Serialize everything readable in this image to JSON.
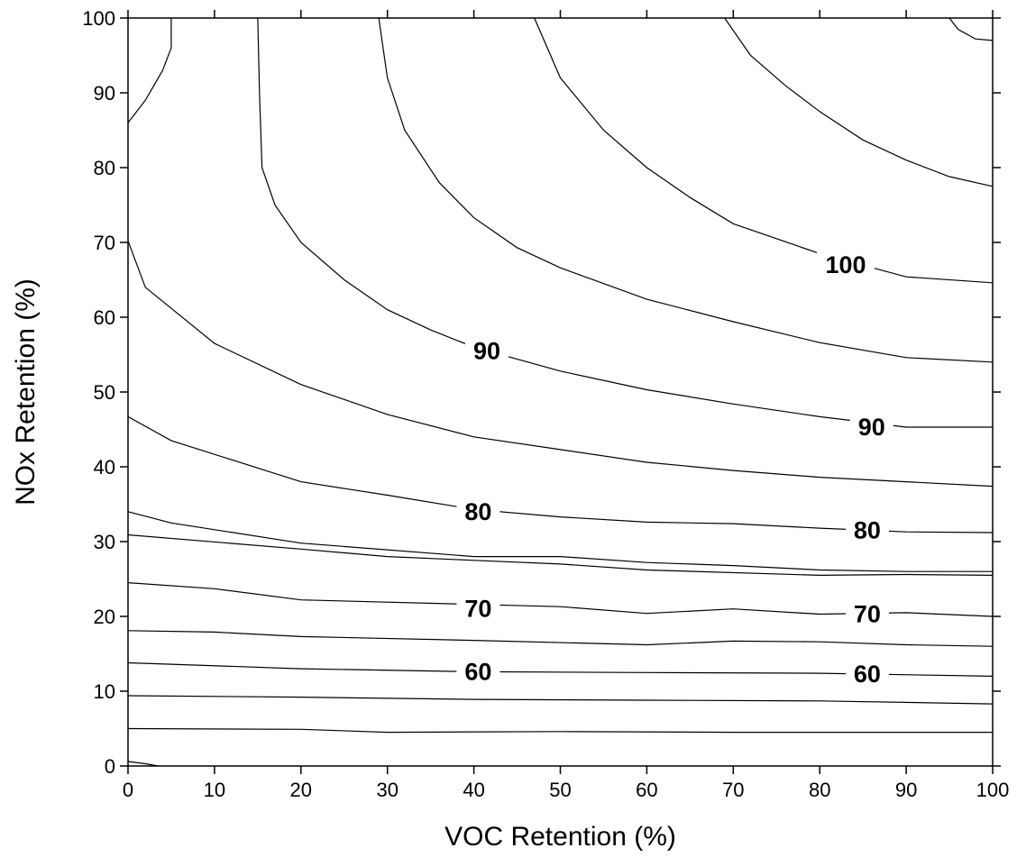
{
  "chart_data": {
    "type": "contour",
    "title": "",
    "xlabel": "VOC Retention (%)",
    "ylabel": "NOx Retention (%)",
    "xlim": [
      0,
      100
    ],
    "ylim": [
      0,
      100
    ],
    "xticks": [
      "0",
      "10",
      "20",
      "30",
      "40",
      "50",
      "60",
      "70",
      "80",
      "90",
      "100"
    ],
    "yticks": [
      "0",
      "10",
      "20",
      "30",
      "40",
      "50",
      "60",
      "70",
      "80",
      "90",
      "100"
    ],
    "grid": false,
    "legend": "none",
    "contours": [
      {
        "points": [
          [
            0,
            0.6
          ],
          [
            2,
            0.3
          ],
          [
            3.5,
            0
          ]
        ]
      },
      {
        "points": [
          [
            0,
            5
          ],
          [
            20,
            4.9
          ],
          [
            30,
            4.5
          ],
          [
            50,
            4.6
          ],
          [
            70,
            4.5
          ],
          [
            100,
            4.5
          ]
        ]
      },
      {
        "points": [
          [
            0,
            9.4
          ],
          [
            20,
            9.2
          ],
          [
            40,
            8.9
          ],
          [
            60,
            8.8
          ],
          [
            80,
            8.7
          ],
          [
            100,
            8.3
          ]
        ]
      },
      {
        "label": "60",
        "points": [
          [
            0,
            13.8
          ],
          [
            5,
            13.6
          ],
          [
            20,
            13
          ],
          [
            40,
            12.6
          ],
          [
            60,
            12.5
          ],
          [
            80,
            12.4
          ],
          [
            100,
            12
          ]
        ]
      },
      {
        "points": [
          [
            0,
            18.1
          ],
          [
            10,
            17.9
          ],
          [
            20,
            17.3
          ],
          [
            40,
            16.8
          ],
          [
            60,
            16.2
          ],
          [
            70,
            16.7
          ],
          [
            80,
            16.6
          ],
          [
            90,
            16.2
          ],
          [
            100,
            16
          ]
        ]
      },
      {
        "label": "70",
        "points": [
          [
            0,
            24.5
          ],
          [
            10,
            23.7
          ],
          [
            20,
            22.2
          ],
          [
            40,
            21.6
          ],
          [
            50,
            21.3
          ],
          [
            60,
            20.4
          ],
          [
            70,
            21
          ],
          [
            80,
            20.3
          ],
          [
            90,
            20.5
          ],
          [
            100,
            20
          ]
        ]
      },
      {
        "points": [
          [
            0,
            30.9
          ],
          [
            20,
            29
          ],
          [
            30,
            28
          ],
          [
            40,
            27.5
          ],
          [
            50,
            27
          ],
          [
            60,
            26.2
          ],
          [
            80,
            25.5
          ],
          [
            90,
            25.6
          ],
          [
            100,
            25.5
          ]
        ]
      },
      {
        "label": "80",
        "points": [
          [
            0,
            34
          ],
          [
            5,
            32.5
          ],
          [
            20,
            29.8
          ],
          [
            40,
            28
          ],
          [
            50,
            28
          ],
          [
            60,
            27.2
          ],
          [
            70,
            26.8
          ],
          [
            80,
            26.2
          ],
          [
            90,
            26
          ],
          [
            100,
            26
          ]
        ]
      },
      {
        "points": [
          [
            0,
            46.7
          ],
          [
            5,
            43.5
          ],
          [
            20,
            38
          ],
          [
            30,
            36.2
          ],
          [
            40,
            34.3
          ],
          [
            50,
            33.3
          ],
          [
            60,
            32.6
          ],
          [
            70,
            32.4
          ],
          [
            80,
            31.8
          ],
          [
            90,
            31.3
          ],
          [
            100,
            31.2
          ]
        ]
      },
      {
        "points": [
          [
            0,
            70.2
          ],
          [
            2,
            64
          ],
          [
            10,
            56.5
          ],
          [
            20,
            51
          ],
          [
            30,
            47
          ],
          [
            40,
            44
          ],
          [
            50,
            42.3
          ],
          [
            60,
            40.6
          ],
          [
            70,
            39.5
          ],
          [
            80,
            38.6
          ],
          [
            90,
            38
          ],
          [
            100,
            37.4
          ]
        ]
      },
      {
        "label": "90",
        "points": [
          [
            15,
            100
          ],
          [
            15.2,
            90
          ],
          [
            15.5,
            80
          ],
          [
            17,
            75
          ],
          [
            20,
            70
          ],
          [
            25,
            65
          ],
          [
            30,
            61
          ],
          [
            35,
            58.3
          ],
          [
            40,
            56
          ],
          [
            50,
            52.8
          ],
          [
            60,
            50.3
          ],
          [
            70,
            48.4
          ],
          [
            80,
            46.7
          ],
          [
            90,
            45.3
          ],
          [
            100,
            45.3
          ]
        ]
      },
      {
        "points": [
          [
            29,
            100
          ],
          [
            30,
            92
          ],
          [
            32,
            85
          ],
          [
            36,
            78
          ],
          [
            40,
            73.3
          ],
          [
            45,
            69.3
          ],
          [
            50,
            66.6
          ],
          [
            60,
            62.4
          ],
          [
            70,
            59.4
          ],
          [
            80,
            56.6
          ],
          [
            90,
            54.6
          ],
          [
            100,
            54
          ]
        ]
      },
      {
        "label": "100",
        "points": [
          [
            47,
            100
          ],
          [
            50,
            92
          ],
          [
            55,
            85
          ],
          [
            60,
            80
          ],
          [
            65,
            76
          ],
          [
            70,
            72.5
          ],
          [
            80,
            68.5
          ],
          [
            90,
            65.4
          ],
          [
            100,
            64.6
          ]
        ]
      },
      {
        "points": [
          [
            69,
            100
          ],
          [
            72,
            95
          ],
          [
            76,
            91
          ],
          [
            80,
            87.5
          ],
          [
            85,
            83.7
          ],
          [
            90,
            81
          ],
          [
            95,
            78.8
          ],
          [
            100,
            77.5
          ]
        ]
      },
      {
        "points": [
          [
            95,
            100
          ],
          [
            96,
            98.5
          ],
          [
            98,
            97.2
          ],
          [
            100,
            97
          ]
        ]
      },
      {
        "points": [
          [
            0,
            86
          ],
          [
            2,
            89
          ],
          [
            4,
            93
          ],
          [
            5,
            96
          ],
          [
            5,
            100
          ]
        ]
      }
    ],
    "contour_labels": [
      {
        "text": "100",
        "x": 83,
        "y": 67
      },
      {
        "text": "90",
        "x": 41.5,
        "y": 55.5
      },
      {
        "text": "90",
        "x": 86,
        "y": 45.3
      },
      {
        "text": "80",
        "x": 40.5,
        "y": 34
      },
      {
        "text": "80",
        "x": 85.5,
        "y": 31.5
      },
      {
        "text": "70",
        "x": 40.5,
        "y": 21
      },
      {
        "text": "70",
        "x": 85.5,
        "y": 20.3
      },
      {
        "text": "60",
        "x": 40.5,
        "y": 12.6
      },
      {
        "text": "60",
        "x": 85.5,
        "y": 12.3
      }
    ]
  }
}
